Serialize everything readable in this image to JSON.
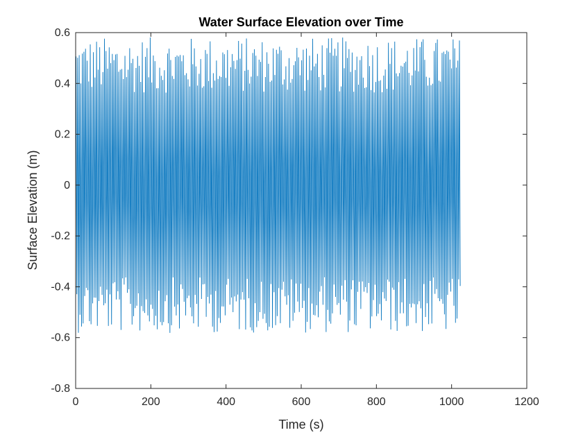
{
  "chart_data": {
    "type": "line",
    "title": "Water Surface Elevation over Time",
    "xlabel": "Time (s)",
    "ylabel": "Surface Elevation (m)",
    "xlim": [
      0,
      1200
    ],
    "ylim": [
      -0.8,
      0.6
    ],
    "xticks": [
      0,
      200,
      400,
      600,
      800,
      1000,
      1200
    ],
    "yticks": [
      -0.8,
      -0.6,
      -0.4,
      -0.2,
      0,
      0.2,
      0.4,
      0.6
    ],
    "xtick_labels": [
      "0",
      "200",
      "400",
      "600",
      "800",
      "1000",
      "1200"
    ],
    "ytick_labels": [
      "-0.8",
      "-0.6",
      "-0.4",
      "-0.2",
      "0",
      "0.2",
      "0.4",
      "0.6"
    ],
    "grid": false,
    "colors": {
      "series": "#0072BD",
      "axes": "#262626"
    },
    "series": [
      {
        "x_start": 0,
        "x_end": 1024,
        "approx_period_s": 4.2,
        "approx_max": 0.6,
        "approx_min": -0.6,
        "typical_amplitude": 0.45
      }
    ]
  }
}
